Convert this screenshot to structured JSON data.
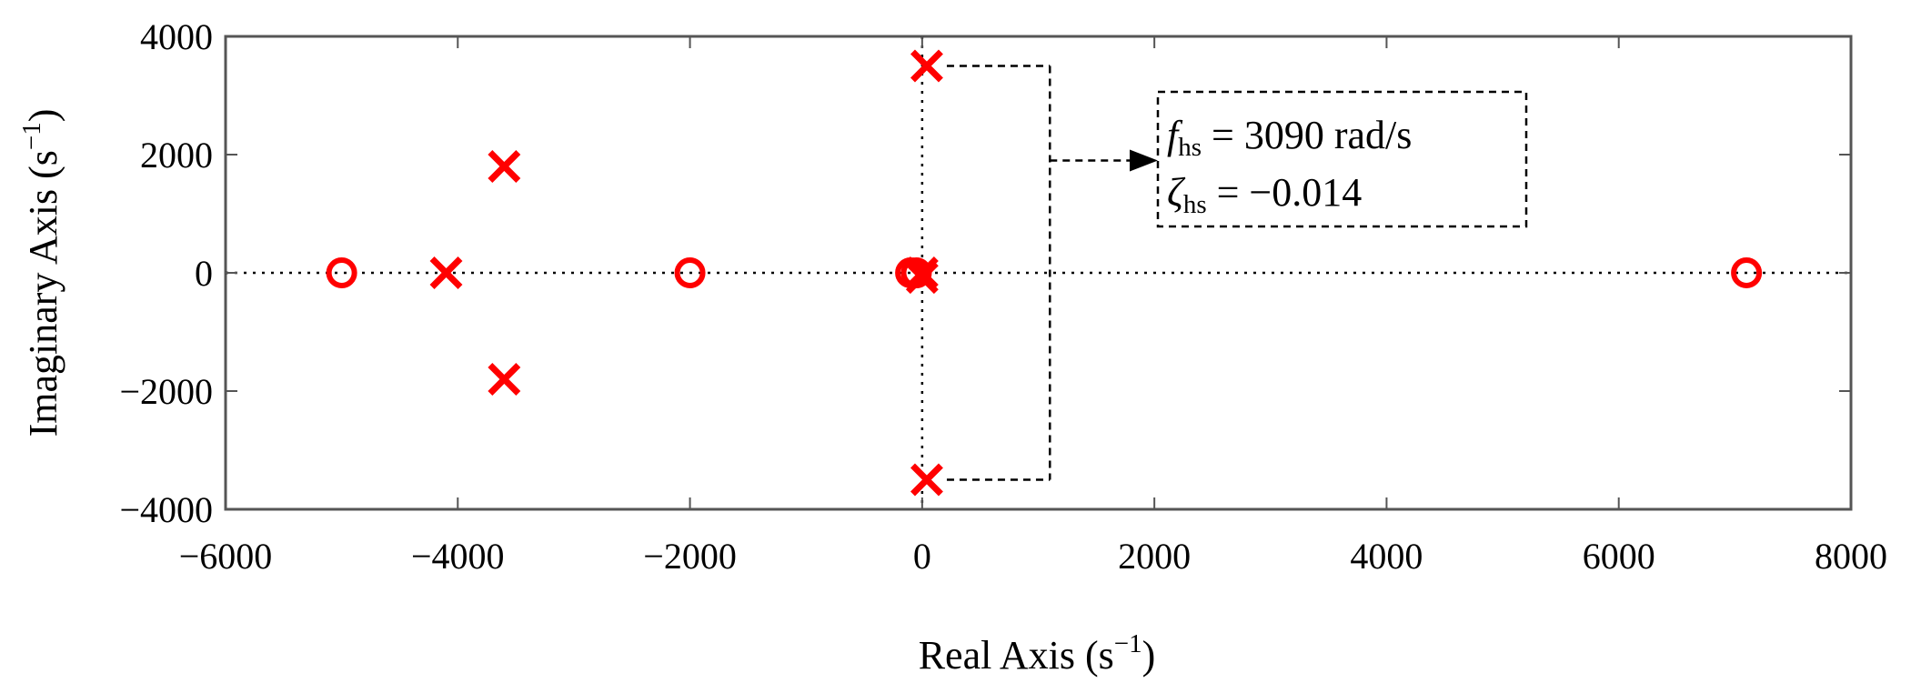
{
  "chart_data": {
    "type": "scatter",
    "title": "",
    "xlabel": "Real Axis (s",
    "xlabel_sup": "−1",
    "xlabel_close": ")",
    "ylabel": "Imaginary Axis (s",
    "ylabel_sup": "−1",
    "ylabel_close": ")",
    "xlim": [
      -6000,
      8000
    ],
    "ylim": [
      -4000,
      4000
    ],
    "xticks": [
      -6000,
      -4000,
      -2000,
      0,
      2000,
      4000,
      6000,
      8000
    ],
    "xtick_labels": [
      "−6000",
      "−4000",
      "−2000",
      "0",
      "2000",
      "4000",
      "6000",
      "8000"
    ],
    "yticks": [
      -4000,
      -2000,
      0,
      2000,
      4000
    ],
    "ytick_labels": [
      "−4000",
      "−2000",
      "0",
      "2000",
      "4000"
    ],
    "grid": false,
    "reference_lines": {
      "x": 0,
      "y": 0,
      "style": "dotted"
    },
    "marker_color": "#ff0000",
    "series": [
      {
        "marker": "o",
        "points": [
          {
            "x": -5000,
            "y": 0
          },
          {
            "x": -2000,
            "y": 0
          },
          {
            "x": -100,
            "y": 0
          },
          {
            "x": -50,
            "y": 0
          },
          {
            "x": 7100,
            "y": 0
          }
        ]
      },
      {
        "marker": "x",
        "points": [
          {
            "x": -4100,
            "y": 0
          },
          {
            "x": -3600,
            "y": 1800
          },
          {
            "x": -3600,
            "y": -1800
          },
          {
            "x": 40,
            "y": 3500
          },
          {
            "x": 40,
            "y": -3500
          },
          {
            "x": 0,
            "y": 0
          },
          {
            "x": 0,
            "y": -80
          }
        ]
      }
    ],
    "annotation": {
      "line1_symbol": "f",
      "line1_sub": "hs",
      "line1_value": " = 3090 rad/s",
      "line2_symbol": "ζ",
      "line2_sub": "hs",
      "line2_value": " = −0.014",
      "bracket_x": 1100,
      "bracket_top_y": 3500,
      "bracket_bottom_y": -3500,
      "arrow_y": 1900
    }
  }
}
